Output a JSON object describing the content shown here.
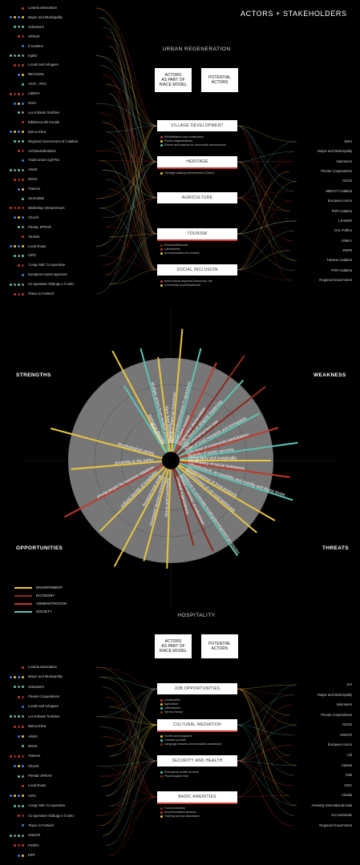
{
  "title": "ACTORS + STAKEHOLDERS",
  "colors": {
    "environment": "#e8c642",
    "economy": "#8a2a1c",
    "administration": "#c0392b",
    "society": "#5ec3b0",
    "grey": "#777"
  },
  "urban": {
    "heading": "URBAN REGENERATION",
    "box_left": "ACTORS\nAS PART OF\nRIACE MODEL",
    "box_right": "POTENTIAL\nACTORS",
    "left_actors": [
      "Lunaria association",
      "Mayor and Municipality",
      "Volunteers",
      "SPRAR",
      "Il Cantiere",
      "Kiphis",
      "Locals and refugees",
      "RECOSOL",
      "ASGI , ARCI",
      "LIBERA",
      "SNAI",
      "Les Enfants Terribles",
      "Biblioteca del Cenide",
      "Banca Etica",
      "Regional Government of Calabria",
      "Architects/Builders",
      "Trade union Cgil-Flai",
      "Artists",
      "NGOs",
      "Trainers",
      "Journalists",
      "Marketing entrepreneurs",
      "Church",
      "FNA&L SPRAR",
      "Tourists",
      "Local shops",
      "CIRC",
      "'Longo Mai' Co-operative",
      "European tourist agencies",
      "Co-operative 'Ebbugo e il cielo'",
      "'Riace in Festival'"
    ],
    "right_actors": [
      "SNAI",
      "Mayor and Municipality",
      "Volunteers",
      "Private Cooperatives",
      "NGOs",
      "MIBACT Calabria",
      "European Union",
      "PSR Calabria",
      "LEADER",
      "GAL Pollino",
      "ISMEA",
      "ENPD",
      "Turismo Calabria",
      "POR Calabria",
      "Regional Government"
    ],
    "categories": [
      {
        "label": "VILLAGE DEVELOPMENT",
        "subs": [
          "Rehabilitation and construction",
          "Revive artgenerations",
          "Events and projects for community development"
        ]
      },
      {
        "label": "HERITAGE",
        "subs": [
          "Heritage building refurbishment (Riace)"
        ]
      },
      {
        "label": "AGRICULTURE",
        "subs": []
      },
      {
        "label": "TOURISM",
        "subs": [
          "Events/artfestivals",
          "Laboratories",
          "Accommodation for tourists"
        ]
      },
      {
        "label": "SOCIAL INCLUSION",
        "subs": [
          "Multi cultural aspects/Community Life",
          "Community food/Restaurant"
        ]
      }
    ]
  },
  "swot": {
    "strengths": "STRENGTHS",
    "weakness": "WEAKNESS",
    "opportunities": "OPPORTUNITIES",
    "threats": "THREATS",
    "rays": [
      {
        "label": "Biological diversity",
        "angle": -118,
        "len": 125,
        "color": "environment"
      },
      {
        "label": "Rehabilitation",
        "angle": -122,
        "len": 80,
        "color": "society"
      },
      {
        "label": "Multiple actors from multiple places",
        "angle": -105,
        "len": 115,
        "color": "society"
      },
      {
        "label": "Rich food production",
        "angle": -97,
        "len": 100,
        "color": "environment"
      },
      {
        "label": "Mixing of financial resources",
        "angle": -85,
        "len": 135,
        "color": "environment"
      },
      {
        "label": "Mixed professionalism in agriculture",
        "angle": -75,
        "len": 115,
        "color": "society"
      },
      {
        "label": "Inefficient tourism",
        "angle": -65,
        "len": 105,
        "color": "administration"
      },
      {
        "label": "Progressive depopulation",
        "angle": -55,
        "len": 130,
        "color": "economy"
      },
      {
        "label": "Major focus on singular leadership",
        "angle": -48,
        "len": 105,
        "color": "society"
      },
      {
        "label": "High unemployment rate",
        "angle": -38,
        "len": 120,
        "color": "economy"
      },
      {
        "label": "Ratio of local residents and immigrants",
        "angle": -28,
        "len": 95,
        "color": "society"
      },
      {
        "label": "Low level of community participation",
        "angle": -17,
        "len": 110,
        "color": "administration"
      },
      {
        "label": "Scarcity of public services",
        "angle": -8,
        "len": 130,
        "color": "society"
      },
      {
        "label": "Geography and marginality",
        "angle": 0,
        "len": 95,
        "color": "environment"
      },
      {
        "label": "inadequacy of social assistance",
        "angle": 8,
        "len": 120,
        "color": "administration"
      },
      {
        "label": "Infrastructural, accessibility and mobility and digital divide",
        "angle": 18,
        "len": 130,
        "color": "society"
      },
      {
        "label": "Disappearance of local products",
        "angle": 30,
        "len": 120,
        "color": "environment"
      },
      {
        "label": "abandonment of old rural landscape",
        "angle": 40,
        "len": 110,
        "color": "environment"
      },
      {
        "label": "resilience to unreliable funding/development processes",
        "angle": 55,
        "len": 115,
        "color": "society"
      },
      {
        "label": "limited economic development",
        "angle": 65,
        "len": 95,
        "color": "economy"
      },
      {
        "label": "criminal organizations",
        "angle": 75,
        "len": 80,
        "color": "economy"
      },
      {
        "label": "Home and conviviality",
        "angle": 92,
        "len": 105,
        "color": "environment"
      },
      {
        "label": "Increased tourism resources",
        "angle": 105,
        "len": 100,
        "color": "environment"
      },
      {
        "label": "Terraced rural areas",
        "angle": 118,
        "len": 120,
        "color": "environment"
      },
      {
        "label": "cultural identity of hospitality",
        "angle": 135,
        "len": 95,
        "color": "environment"
      },
      {
        "label": "young people for business initiatives",
        "angle": 152,
        "len": 120,
        "color": "administration"
      },
      {
        "label": "proximity to the parks",
        "angle": 175,
        "len": 95,
        "color": "environment"
      },
      {
        "label": "Morphological variety",
        "angle": 195,
        "len": 125,
        "color": "environment"
      }
    ],
    "legend": [
      {
        "label": "ENVIRONMENT",
        "color": "environment"
      },
      {
        "label": "ECONOMY",
        "color": "economy"
      },
      {
        "label": "ADMINISTRATION",
        "color": "administration"
      },
      {
        "label": "SOCIETY",
        "color": "society"
      }
    ]
  },
  "hosp": {
    "heading": "HOSPITALITY",
    "box_left": "ACTORS\nAS PART OF\nRIACE MODEL",
    "box_right": "POTENTIAL\nACTORS",
    "left_actors": [
      "Lunaria association",
      "Mayor and Municipality",
      "Volunteers",
      "Private Cooperatives",
      "Locals and refugees",
      "Les Enfants Terribles",
      "Banca Etica",
      "Artists",
      "NGOs",
      "Trainers",
      "Church",
      "FNA&E SPRAR",
      "Local shops",
      "CIRC",
      "'Longo Mai' Co-operative",
      "Co-operative 'Ebbugo e il cielo'",
      "'Riace in Festival'",
      "UNHCR",
      "FNSPA",
      "ERP"
    ],
    "right_actors": [
      "SAI",
      "Mayor and Municipality",
      "Volunteers",
      "Private Cooperatives",
      "NGOs",
      "UNHCR",
      "European Union",
      "Cili",
      "Caritas",
      "IOM",
      "ANCI",
      "Cittalia",
      "Amnesty International Italia",
      "Arci nazionale",
      "Regional Government"
    ],
    "categories": [
      {
        "label": "JOB OPPORTUNITIES",
        "subs": [
          "Construction",
          "Agriculture",
          "Laboratories",
          "Service Sector"
        ]
      },
      {
        "label": "CULTURAL MEDIATION",
        "subs": [
          "Events and programs",
          "Creative pursuits",
          "Language lessons and translation assistance"
        ]
      },
      {
        "label": "SECURITY AND HEALTH",
        "subs": [
          "Emergency health services",
          "Psychological help"
        ]
      },
      {
        "label": "BASIC AMENITIES",
        "subs": [
          "Food production",
          "Accommodation services",
          "Training and job assistance"
        ]
      }
    ]
  }
}
